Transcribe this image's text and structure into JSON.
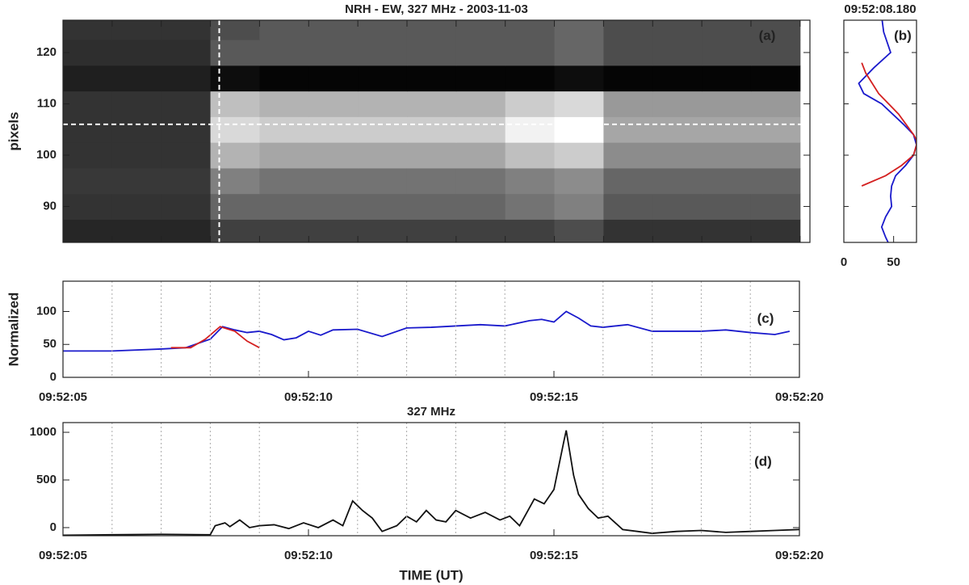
{
  "chart_data": [
    {
      "type": "heatmap",
      "title": "NRH - EW, 327 MHz  -  2003-11-03",
      "ylabel": "pixels",
      "label": "(a)",
      "colormap": "gray",
      "xbins": [
        5,
        6,
        7,
        8,
        9,
        10,
        11,
        12,
        13,
        14,
        15,
        16,
        17,
        18,
        19,
        20
      ],
      "ybins": [
        82.5,
        87.5,
        92.5,
        97.5,
        102.5,
        107.5,
        112.5,
        117.5,
        122.5,
        127.5
      ],
      "z": [
        [
          0.15,
          0.15,
          0.15,
          0.25,
          0.25,
          0.25,
          0.25,
          0.25,
          0.25,
          0.25,
          0.3,
          0.2,
          0.2,
          0.2,
          0.2
        ],
        [
          0.2,
          0.2,
          0.2,
          0.4,
          0.4,
          0.4,
          0.4,
          0.4,
          0.4,
          0.45,
          0.5,
          0.35,
          0.35,
          0.35,
          0.35
        ],
        [
          0.22,
          0.22,
          0.22,
          0.5,
          0.45,
          0.45,
          0.45,
          0.45,
          0.45,
          0.5,
          0.55,
          0.4,
          0.4,
          0.4,
          0.4
        ],
        [
          0.2,
          0.2,
          0.2,
          0.7,
          0.65,
          0.65,
          0.65,
          0.65,
          0.65,
          0.75,
          0.8,
          0.55,
          0.55,
          0.55,
          0.55
        ],
        [
          0.2,
          0.2,
          0.2,
          0.85,
          0.8,
          0.8,
          0.8,
          0.8,
          0.8,
          0.95,
          1,
          0.65,
          0.65,
          0.65,
          0.65
        ],
        [
          0.2,
          0.2,
          0.2,
          0.75,
          0.7,
          0.7,
          0.7,
          0.7,
          0.7,
          0.8,
          0.85,
          0.6,
          0.6,
          0.6,
          0.6
        ],
        [
          0.12,
          0.12,
          0.12,
          0.05,
          0.02,
          0.02,
          0.02,
          0.02,
          0.02,
          0.02,
          0.05,
          0.02,
          0.02,
          0.02,
          0.02
        ],
        [
          0.18,
          0.18,
          0.18,
          0.35,
          0.35,
          0.35,
          0.35,
          0.35,
          0.35,
          0.35,
          0.4,
          0.3,
          0.3,
          0.3,
          0.3
        ],
        [
          0.2,
          0.2,
          0.2,
          0.3,
          0.35,
          0.35,
          0.35,
          0.35,
          0.35,
          0.35,
          0.4,
          0.3,
          0.3,
          0.3,
          0.3
        ]
      ],
      "xlim": [
        5,
        20.2
      ],
      "ylim": [
        83,
        126.3
      ],
      "yticks": [
        90,
        100,
        110,
        120
      ],
      "xminor": [
        5,
        6,
        7,
        8,
        9,
        10,
        11,
        12,
        13,
        14,
        15,
        16,
        17,
        18,
        19,
        20
      ],
      "cursor_x": 8.18,
      "cursor_y": 106
    },
    {
      "type": "profile",
      "title": "09:52:08.180",
      "label": "(b)",
      "xlim": [
        0,
        73
      ],
      "xticks": [
        0,
        50
      ],
      "ylim": [
        83,
        126.3
      ],
      "ytick_marks": [
        90,
        100,
        110,
        120
      ],
      "series": [
        {
          "color": "#1a1acc",
          "x": [
            38,
            40,
            47,
            30,
            15,
            20,
            38,
            60,
            70,
            73,
            70,
            62,
            52,
            48,
            47,
            48,
            42,
            38,
            42,
            47
          ],
          "y": [
            127,
            124,
            120,
            117,
            114,
            112,
            110,
            106,
            104,
            102,
            100,
            98,
            96,
            94,
            92,
            90,
            88,
            86,
            84,
            82
          ]
        },
        {
          "color": "#d42020",
          "x": [
            18,
            22,
            35,
            55,
            70,
            73,
            73,
            70,
            58,
            42,
            18
          ],
          "y": [
            118,
            116,
            112,
            108,
            104,
            103,
            102,
            100,
            98,
            96,
            94
          ]
        }
      ]
    },
    {
      "type": "line",
      "ylabel": "Normalized",
      "label": "(c)",
      "xlim": [
        5,
        20
      ],
      "ylim": [
        0,
        146
      ],
      "yticks": [
        0,
        50,
        100
      ],
      "xticks": [
        {
          "value": 5,
          "label": "09:52:05"
        },
        {
          "value": 10,
          "label": "09:52:10"
        },
        {
          "value": 15,
          "label": "09:52:15"
        },
        {
          "value": 20,
          "label": "09:52:20"
        }
      ],
      "xminor": [
        6,
        7,
        8,
        9,
        11,
        12,
        13,
        14,
        16,
        17,
        18,
        19
      ],
      "series": [
        {
          "color": "#1a1acc",
          "x": [
            5,
            6,
            7,
            7.5,
            8,
            8.25,
            8.5,
            8.75,
            9,
            9.25,
            9.5,
            9.75,
            10,
            10.25,
            10.5,
            11,
            11.5,
            12,
            12.5,
            13,
            13.5,
            14,
            14.5,
            14.75,
            15,
            15.25,
            15.5,
            15.75,
            16,
            16.5,
            17,
            17.5,
            18,
            18.5,
            19,
            19.5,
            19.8
          ],
          "values": [
            40,
            40,
            43,
            45,
            58,
            77,
            72,
            68,
            70,
            65,
            57,
            60,
            70,
            64,
            72,
            73,
            62,
            75,
            76,
            78,
            80,
            78,
            86,
            88,
            84,
            100,
            90,
            78,
            76,
            80,
            70,
            70,
            70,
            72,
            68,
            65,
            70
          ]
        },
        {
          "color": "#d42020",
          "x": [
            7.2,
            7.6,
            7.9,
            8.2,
            8.5,
            8.75,
            9
          ],
          "values": [
            45,
            45,
            58,
            77,
            70,
            55,
            45
          ]
        }
      ]
    },
    {
      "type": "line",
      "title": "327 MHz",
      "xlabel": "TIME (UT)",
      "label": "(d)",
      "xlim": [
        5,
        20
      ],
      "ylim": [
        -85,
        1102
      ],
      "yticks": [
        0,
        500,
        1000
      ],
      "xticks": [
        {
          "value": 5,
          "label": "09:52:05"
        },
        {
          "value": 10,
          "label": "09:52:10"
        },
        {
          "value": 15,
          "label": "09:52:15"
        },
        {
          "value": 20,
          "label": "09:52:20"
        }
      ],
      "xminor": [
        6,
        7,
        8,
        9,
        11,
        12,
        13,
        14,
        16,
        17,
        18,
        19
      ],
      "series": [
        {
          "color": "#111111",
          "x": [
            5,
            6,
            7,
            8,
            8.1,
            8.3,
            8.4,
            8.6,
            8.8,
            9,
            9.3,
            9.6,
            9.9,
            10.2,
            10.5,
            10.7,
            10.9,
            11.1,
            11.3,
            11.5,
            11.8,
            12,
            12.2,
            12.4,
            12.6,
            12.8,
            13,
            13.3,
            13.6,
            13.9,
            14.1,
            14.3,
            14.6,
            14.8,
            15,
            15.2,
            15.25,
            15.4,
            15.5,
            15.7,
            15.9,
            16.1,
            16.4,
            16.7,
            17,
            17.5,
            18,
            18.5,
            19,
            19.5,
            20
          ],
          "values": [
            -80,
            -75,
            -70,
            -75,
            20,
            50,
            10,
            80,
            0,
            20,
            30,
            -10,
            50,
            0,
            80,
            20,
            280,
            180,
            100,
            -40,
            20,
            120,
            60,
            180,
            80,
            60,
            180,
            100,
            160,
            80,
            120,
            20,
            300,
            250,
            400,
            900,
            1020,
            550,
            350,
            200,
            100,
            120,
            -20,
            -40,
            -60,
            -40,
            -30,
            -50,
            -40,
            -30,
            -20
          ]
        }
      ]
    }
  ]
}
